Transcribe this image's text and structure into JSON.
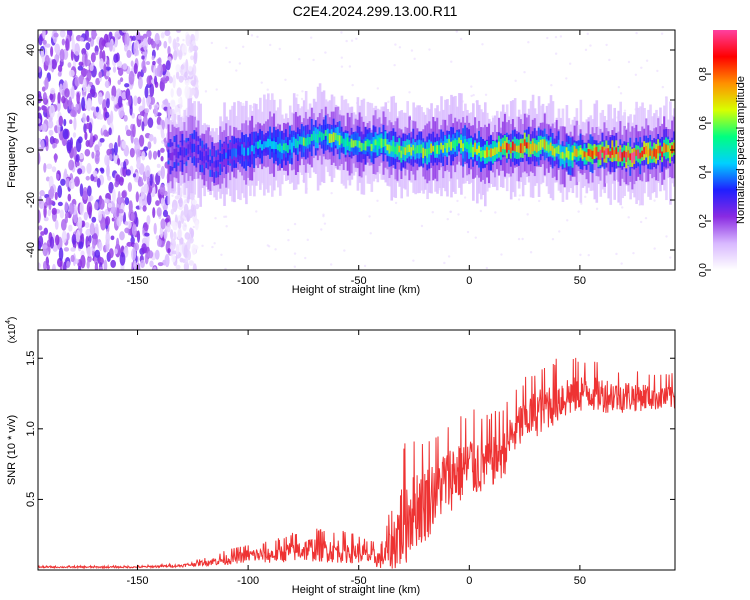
{
  "title": "C2E4.2024.299.13.00.R11",
  "chart_data": [
    {
      "type": "heatmap",
      "xlabel": "Height of straight line (km)",
      "ylabel": "Frequency (Hz)",
      "xlim": [
        -195,
        93
      ],
      "ylim": [
        -48,
        48
      ],
      "xticks": [
        -150,
        -100,
        -50,
        0,
        50
      ],
      "yticks": [
        -40,
        -20,
        0,
        20,
        40
      ],
      "colorbar": {
        "label": "Normalized spectral amplitude",
        "range": [
          0.0,
          0.98
        ],
        "ticks": [
          0.0,
          0.2,
          0.4,
          0.6,
          0.8
        ],
        "colors": [
          "#ffffff",
          "#d8b8ff",
          "#8a2be2",
          "#1f1fff",
          "#00d0ff",
          "#00ff80",
          "#d8ff00",
          "#ff9000",
          "#ff0000",
          "#ff40a0"
        ]
      },
      "noise_region_x": [
        -195,
        -135
      ],
      "ridge": {
        "x": [
          -135,
          -130,
          -125,
          -120,
          -115,
          -110,
          -105,
          -100,
          -95,
          -90,
          -85,
          -80,
          -75,
          -70,
          -65,
          -60,
          -55,
          -50,
          -45,
          -40,
          -35,
          -30,
          -25,
          -20,
          -15,
          -10,
          -5,
          0,
          5,
          10,
          15,
          20,
          25,
          30,
          35,
          40,
          45,
          50,
          55,
          60,
          65,
          70,
          75,
          80,
          85,
          90
        ],
        "y": [
          -2,
          -1,
          1,
          -3,
          -5,
          -2,
          -1,
          0,
          2,
          3,
          1,
          2,
          4,
          5,
          6,
          4,
          3,
          1,
          2,
          3,
          1,
          -1,
          0,
          -1,
          1,
          2,
          3,
          1,
          -1,
          0,
          1,
          1,
          2,
          1,
          2,
          -1,
          -2,
          -1,
          -2,
          -1,
          -1,
          -2,
          -2,
          -1,
          -1,
          0
        ],
        "amplitude": [
          0.25,
          0.3,
          0.3,
          0.3,
          0.3,
          0.35,
          0.35,
          0.4,
          0.45,
          0.5,
          0.5,
          0.5,
          0.55,
          0.55,
          0.55,
          0.6,
          0.55,
          0.55,
          0.55,
          0.6,
          0.6,
          0.65,
          0.6,
          0.6,
          0.6,
          0.6,
          0.6,
          0.6,
          0.65,
          0.7,
          0.75,
          0.8,
          0.8,
          0.75,
          0.7,
          0.6,
          0.6,
          0.7,
          0.8,
          0.9,
          0.9,
          0.9,
          0.9,
          0.85,
          0.85,
          0.8
        ]
      }
    },
    {
      "type": "line",
      "xlabel": "Height of straight line (km)",
      "ylabel": "SNR (10 * v/v)",
      "y_multiplier": "(x10",
      "y_multiplier_exp": "4",
      "y_multiplier_close": ")",
      "xlim": [
        -195,
        93
      ],
      "ylim": [
        0,
        1.7
      ],
      "xticks": [
        -150,
        -100,
        -50,
        0,
        50
      ],
      "yticks": [
        0.5,
        1.0,
        1.5
      ],
      "color": "#ee3333",
      "trend": {
        "x": [
          -195,
          -150,
          -130,
          -120,
          -110,
          -100,
          -90,
          -80,
          -70,
          -60,
          -50,
          -45,
          -40,
          -35,
          -30,
          -25,
          -20,
          -15,
          -10,
          -5,
          0,
          5,
          10,
          15,
          20,
          25,
          30,
          35,
          40,
          45,
          50,
          55,
          60,
          70,
          80,
          93
        ],
        "y": [
          0.02,
          0.02,
          0.03,
          0.05,
          0.07,
          0.1,
          0.1,
          0.13,
          0.14,
          0.13,
          0.12,
          0.09,
          0.07,
          0.15,
          0.3,
          0.42,
          0.45,
          0.55,
          0.62,
          0.68,
          0.72,
          0.72,
          0.76,
          0.82,
          0.95,
          1.05,
          1.1,
          1.15,
          1.2,
          1.22,
          1.25,
          1.25,
          1.23,
          1.22,
          1.22,
          1.22
        ]
      },
      "noise": {
        "x": [
          -195,
          -150,
          -130,
          -120,
          -110,
          -100,
          -90,
          -80,
          -70,
          -60,
          -50,
          -45,
          -40,
          -35,
          -30,
          -25,
          -20,
          -15,
          -10,
          -5,
          0,
          5,
          10,
          15,
          20,
          25,
          30,
          35,
          40,
          45,
          50,
          55,
          60,
          70,
          80,
          93
        ],
        "y": [
          0.005,
          0.006,
          0.01,
          0.02,
          0.04,
          0.05,
          0.06,
          0.08,
          0.09,
          0.09,
          0.08,
          0.07,
          0.07,
          0.18,
          0.35,
          0.3,
          0.3,
          0.25,
          0.25,
          0.25,
          0.25,
          0.22,
          0.2,
          0.2,
          0.18,
          0.18,
          0.18,
          0.18,
          0.18,
          0.16,
          0.15,
          0.14,
          0.13,
          0.12,
          0.1,
          0.1
        ]
      }
    }
  ]
}
